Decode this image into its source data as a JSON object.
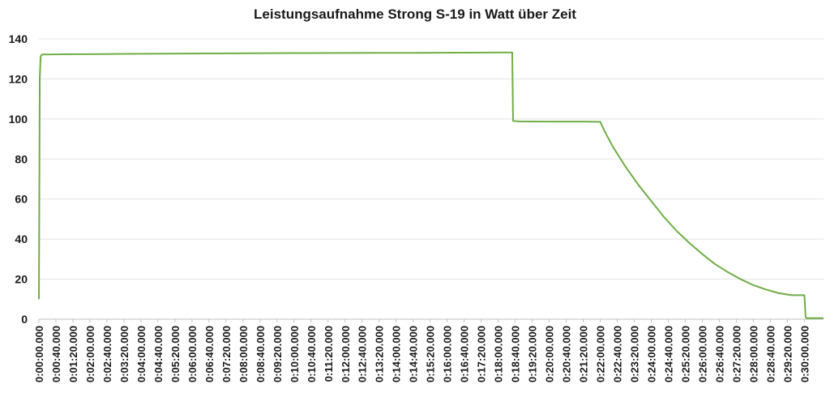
{
  "chart_data": {
    "type": "line",
    "title": "Leistungsaufnahme Strong S-19 in Watt über Zeit",
    "xlabel": "",
    "ylabel": "",
    "ylim": [
      0,
      140
    ],
    "yticks": [
      0,
      20,
      40,
      60,
      80,
      100,
      120,
      140
    ],
    "xlim_seconds": [
      0,
      1845
    ],
    "xtick_labels": [
      "0:00:00.000",
      "0:00:40.000",
      "0:01:20.000",
      "0:02:00.000",
      "0:02:40.000",
      "0:03:20.000",
      "0:04:00.000",
      "0:04:40.000",
      "0:05:20.000",
      "0:06:00.000",
      "0:06:40.000",
      "0:07:20.000",
      "0:08:00.000",
      "0:08:40.000",
      "0:09:20.000",
      "0:10:00.000",
      "0:10:40.000",
      "0:11:20.000",
      "0:12:00.000",
      "0:12:40.000",
      "0:13:20.000",
      "0:14:00.000",
      "0:14:40.000",
      "0:15:20.000",
      "0:16:00.000",
      "0:16:40.000",
      "0:17:20.000",
      "0:18:00.000",
      "0:18:40.000",
      "0:19:20.000",
      "0:20:00.000",
      "0:20:40.000",
      "0:21:20.000",
      "0:22:00.000",
      "0:22:40.000",
      "0:23:20.000",
      "0:24:00.000",
      "0:24:40.000",
      "0:25:20.000",
      "0:26:00.000",
      "0:26:40.000",
      "0:27:20.000",
      "0:28:00.000",
      "0:28:40.000",
      "0:29:20.000",
      "0:30:00.000"
    ],
    "grid": true,
    "legend": "none",
    "series": [
      {
        "color": "#70ad47",
        "x_seconds": [
          0,
          2,
          4,
          6,
          10,
          60,
          200,
          400,
          600,
          800,
          1000,
          1100,
          1113,
          1115,
          1130,
          1200,
          1280,
          1320,
          1330,
          1350,
          1380,
          1410,
          1440,
          1470,
          1500,
          1530,
          1560,
          1590,
          1620,
          1650,
          1680,
          1710,
          1740,
          1770,
          1800,
          1803,
          1805,
          1830,
          1845
        ],
        "y": [
          10,
          120,
          131,
          132,
          132.2,
          132.3,
          132.5,
          132.7,
          132.9,
          133.0,
          133.1,
          133.2,
          133.2,
          99,
          98.8,
          98.7,
          98.7,
          98.6,
          94,
          86,
          76,
          67,
          59,
          51,
          44,
          38,
          32.5,
          27.5,
          23.5,
          20,
          17,
          14.8,
          13,
          12,
          12,
          1,
          0.5,
          0.5,
          0.5
        ]
      }
    ]
  }
}
